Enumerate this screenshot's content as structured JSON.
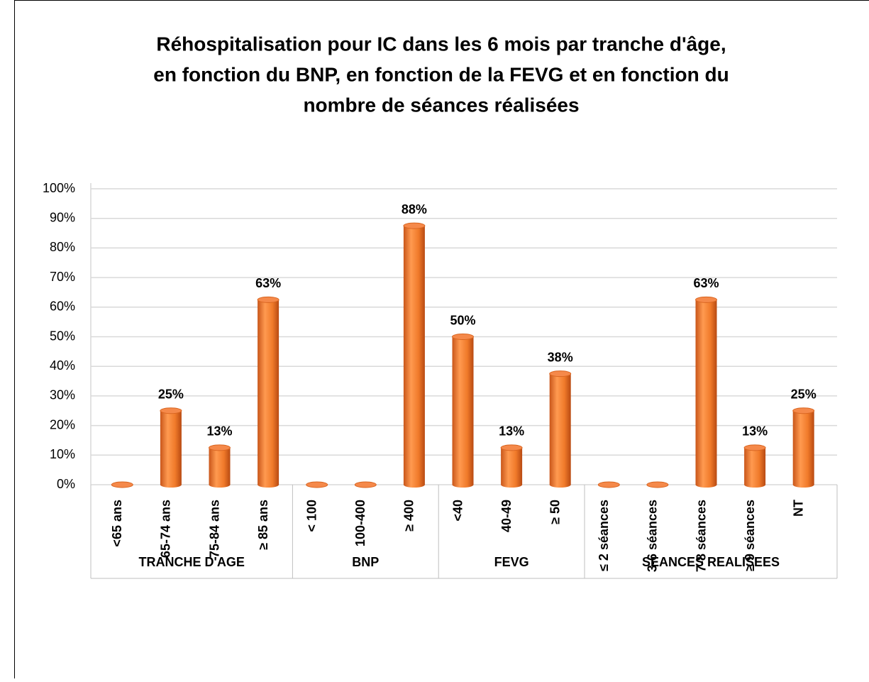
{
  "chart_data": {
    "type": "bar",
    "title": [
      "Réhospitalisation pour IC dans les 6 mois par tranche d'âge,",
      "en fonction du BNP, en fonction de la FEVG et en fonction du",
      "nombre de séances réalisées"
    ],
    "categories": [
      "<65 ans",
      "65-74 ans",
      "75-84 ans",
      "≥ 85 ans",
      "< 100",
      "100-400",
      "≥ 400",
      "<40",
      "40-49",
      "≥ 50",
      "≤ 2 séances",
      "3-6 séances",
      "7-8 séances",
      "≥ 9 séances",
      "NT"
    ],
    "groups": [
      {
        "name": "TRANCHE D'AGE",
        "size": 4
      },
      {
        "name": "BNP",
        "size": 3
      },
      {
        "name": "FEVG",
        "size": 3
      },
      {
        "name": "SEANCES REALISEES",
        "size": 5
      }
    ],
    "values": [
      0,
      25,
      12.5,
      62.5,
      0,
      0,
      87.5,
      50,
      12.5,
      37.5,
      0,
      0,
      62.5,
      12.5,
      25
    ],
    "value_labels": [
      null,
      "25%",
      "13%",
      "63%",
      null,
      null,
      "88%",
      "50%",
      "13%",
      "38%",
      null,
      null,
      "63%",
      "13%",
      "25%"
    ],
    "color": "#f07a2a",
    "ylim": [
      0,
      100
    ],
    "yticks": [
      {
        "value": 0,
        "label": "0%"
      },
      {
        "value": 10,
        "label": "10%"
      },
      {
        "value": 20,
        "label": "20%"
      },
      {
        "value": 30,
        "label": "30%"
      },
      {
        "value": 40,
        "label": "40%"
      },
      {
        "value": 50,
        "label": "50%"
      },
      {
        "value": 60,
        "label": "60%"
      },
      {
        "value": 70,
        "label": "70%"
      },
      {
        "value": 80,
        "label": "80%"
      },
      {
        "value": 90,
        "label": "90%"
      },
      {
        "value": 100,
        "label": "100%"
      }
    ],
    "grid": true
  }
}
